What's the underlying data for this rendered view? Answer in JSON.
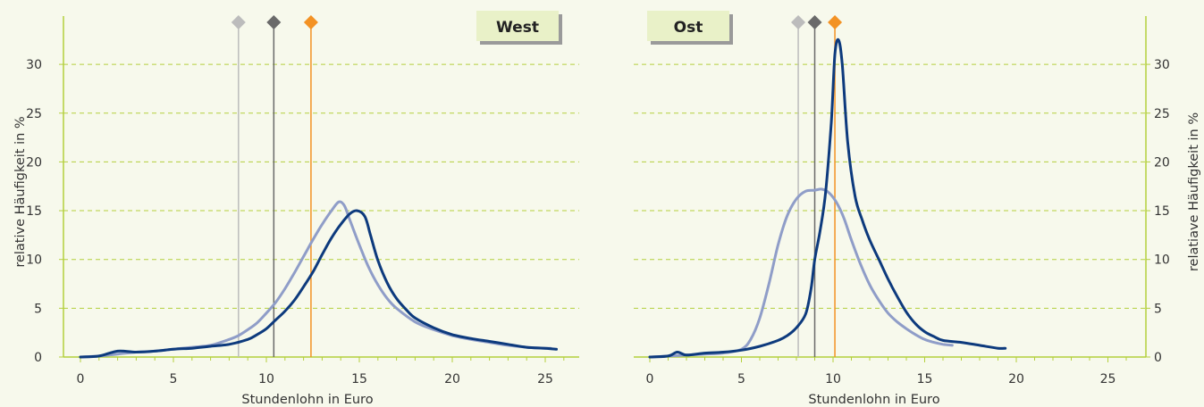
{
  "colors": {
    "background": "#f7f9ec",
    "axis": "#b4cf3c",
    "grid": "#b4cf3c",
    "series_dark": "#0d3a7d",
    "series_light": "#8f9dc8",
    "marker_light_gray": "#bcbcbc",
    "marker_dark_gray": "#6a6a6a",
    "marker_orange": "#f39224",
    "label_box": "#e9f1c8"
  },
  "chart_data": [
    {
      "type": "line",
      "panel_label": "West",
      "xlabel": "Stundenlohn in Euro",
      "ylabel": "relative Häufigkeit in %",
      "xlim": [
        0,
        26
      ],
      "ylim": [
        0,
        34
      ],
      "x_ticks": [
        0,
        5,
        10,
        15,
        20,
        25
      ],
      "y_ticks": [
        0,
        5,
        10,
        15,
        20,
        25,
        30
      ],
      "y_axis_side": "left",
      "grid": true,
      "markers": [
        {
          "x": 8.5,
          "color": "marker_light_gray"
        },
        {
          "x": 10.4,
          "color": "marker_dark_gray"
        },
        {
          "x": 12.4,
          "color": "marker_orange"
        }
      ],
      "series": [
        {
          "color": "series_light",
          "x": [
            0,
            1,
            2,
            3,
            4,
            5,
            6,
            7,
            8,
            8.5,
            9,
            9.5,
            10,
            10.5,
            11,
            11.5,
            12,
            12.5,
            13,
            13.5,
            13.9,
            14.2,
            14.5,
            15,
            15.5,
            16,
            16.5,
            17,
            18,
            19,
            20,
            21,
            22,
            23,
            24,
            25,
            25.3
          ],
          "y": [
            0,
            0.1,
            0.3,
            0.5,
            0.6,
            0.8,
            1.0,
            1.2,
            1.8,
            2.2,
            2.8,
            3.5,
            4.5,
            5.6,
            7.0,
            8.6,
            10.3,
            12.0,
            13.6,
            15.0,
            15.9,
            15.5,
            14.0,
            11.5,
            9.2,
            7.4,
            6.0,
            5.0,
            3.6,
            2.8,
            2.2,
            1.8,
            1.5,
            1.2,
            1.0,
            0.9,
            0.9
          ]
        },
        {
          "color": "series_dark",
          "x": [
            0,
            1,
            2,
            3,
            4,
            5,
            6,
            7,
            8,
            9,
            9.5,
            10,
            10.5,
            11,
            11.5,
            12,
            12.5,
            13,
            13.5,
            14,
            14.5,
            14.9,
            15.3,
            15.6,
            16,
            16.5,
            17,
            17.5,
            18,
            19,
            20,
            21,
            22,
            23,
            24,
            25,
            25.6
          ],
          "y": [
            0,
            0.1,
            0.6,
            0.5,
            0.6,
            0.8,
            0.9,
            1.1,
            1.3,
            1.8,
            2.3,
            2.9,
            3.8,
            4.7,
            5.8,
            7.2,
            8.7,
            10.5,
            12.2,
            13.6,
            14.7,
            15.0,
            14.4,
            12.5,
            9.9,
            7.6,
            6.0,
            4.9,
            4.0,
            3.0,
            2.3,
            1.9,
            1.6,
            1.3,
            1.0,
            0.9,
            0.8
          ]
        }
      ]
    },
    {
      "type": "line",
      "panel_label": "Ost",
      "xlabel": "Stundenlohn in Euro",
      "ylabel": "relatiave Häufigkeit in %",
      "xlim": [
        0,
        26
      ],
      "ylim": [
        0,
        34
      ],
      "x_ticks": [
        0,
        5,
        10,
        15,
        20,
        25
      ],
      "y_ticks": [
        0,
        5,
        10,
        15,
        20,
        25,
        30
      ],
      "y_axis_side": "right",
      "grid": true,
      "markers": [
        {
          "x": 8.1,
          "color": "marker_light_gray"
        },
        {
          "x": 9.0,
          "color": "marker_dark_gray"
        },
        {
          "x": 10.1,
          "color": "marker_orange"
        }
      ],
      "series": [
        {
          "color": "series_light",
          "x": [
            0,
            1,
            2,
            3,
            4,
            5,
            5.5,
            6,
            6.5,
            7,
            7.5,
            8,
            8.5,
            9,
            9.4,
            9.8,
            10.2,
            10.6,
            11,
            11.5,
            12,
            12.5,
            13,
            13.5,
            14,
            14.5,
            15,
            15.5,
            16,
            16.5
          ],
          "y": [
            0,
            0.1,
            0.2,
            0.3,
            0.4,
            0.8,
            1.8,
            4.0,
            7.5,
            11.5,
            14.5,
            16.2,
            17.0,
            17.1,
            17.2,
            16.8,
            15.8,
            14.2,
            12.0,
            9.5,
            7.4,
            5.8,
            4.5,
            3.6,
            2.9,
            2.3,
            1.8,
            1.5,
            1.3,
            1.2
          ]
        },
        {
          "color": "series_dark",
          "x": [
            0,
            1,
            1.5,
            2,
            3,
            4,
            5,
            6,
            7,
            7.5,
            8,
            8.5,
            8.8,
            9,
            9.3,
            9.6,
            9.9,
            10.1,
            10.3,
            10.5,
            10.8,
            11.2,
            11.6,
            12,
            12.5,
            13,
            13.5,
            14,
            14.5,
            15,
            15.5,
            16,
            17,
            18,
            19,
            19.4
          ],
          "y": [
            0,
            0.1,
            0.5,
            0.2,
            0.4,
            0.5,
            0.7,
            1.1,
            1.7,
            2.2,
            3.0,
            4.4,
            7.0,
            10.0,
            13.0,
            17.0,
            24.0,
            31.0,
            32.5,
            30.0,
            22.0,
            16.5,
            14.0,
            12.0,
            10.0,
            8.0,
            6.2,
            4.6,
            3.4,
            2.6,
            2.1,
            1.7,
            1.5,
            1.2,
            0.9,
            0.9
          ]
        }
      ]
    }
  ]
}
